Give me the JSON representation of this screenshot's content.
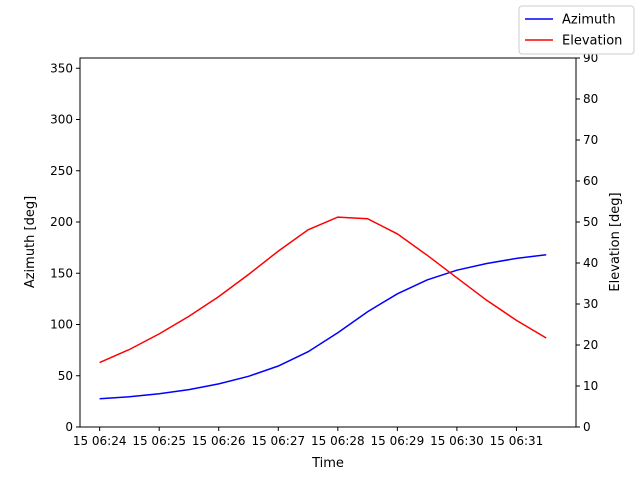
{
  "chart_data": {
    "type": "line",
    "xlabel": "Time",
    "ylabel_left": "Azimuth [deg]",
    "ylabel_right": "Elevation [deg]",
    "x_tick_labels": [
      "15 06:24",
      "15 06:25",
      "15 06:26",
      "15 06:27",
      "15 06:28",
      "15 06:29",
      "15 06:30",
      "15 06:31"
    ],
    "x_tick_minutes": [
      24,
      25,
      26,
      27,
      28,
      29,
      30,
      31
    ],
    "x": [
      24.0,
      24.5,
      25.0,
      25.5,
      26.0,
      26.5,
      27.0,
      27.5,
      28.0,
      28.5,
      29.0,
      29.5,
      30.0,
      30.5,
      31.0,
      31.5
    ],
    "ylim_left": [
      0,
      360
    ],
    "yticks_left": [
      0,
      50,
      100,
      150,
      200,
      250,
      300,
      350
    ],
    "ylim_right": [
      0,
      90
    ],
    "yticks_right": [
      0,
      10,
      20,
      30,
      40,
      50,
      60,
      70,
      80,
      90
    ],
    "legend_position": "top-right",
    "series": [
      {
        "name": "Azimuth",
        "axis": "left",
        "color": "#0000ff",
        "values": [
          27.5,
          29.5,
          32.5,
          36.5,
          42,
          49.5,
          59.5,
          73.5,
          92,
          112.5,
          130,
          143.5,
          153,
          159.5,
          164.5,
          168
        ]
      },
      {
        "name": "Elevation",
        "axis": "right",
        "color": "#ff0000",
        "values": [
          15.7,
          18.9,
          22.7,
          27.0,
          31.8,
          37.2,
          42.9,
          48.1,
          51.2,
          50.8,
          47.1,
          41.9,
          36.4,
          30.9,
          26.0,
          21.7
        ]
      }
    ]
  }
}
